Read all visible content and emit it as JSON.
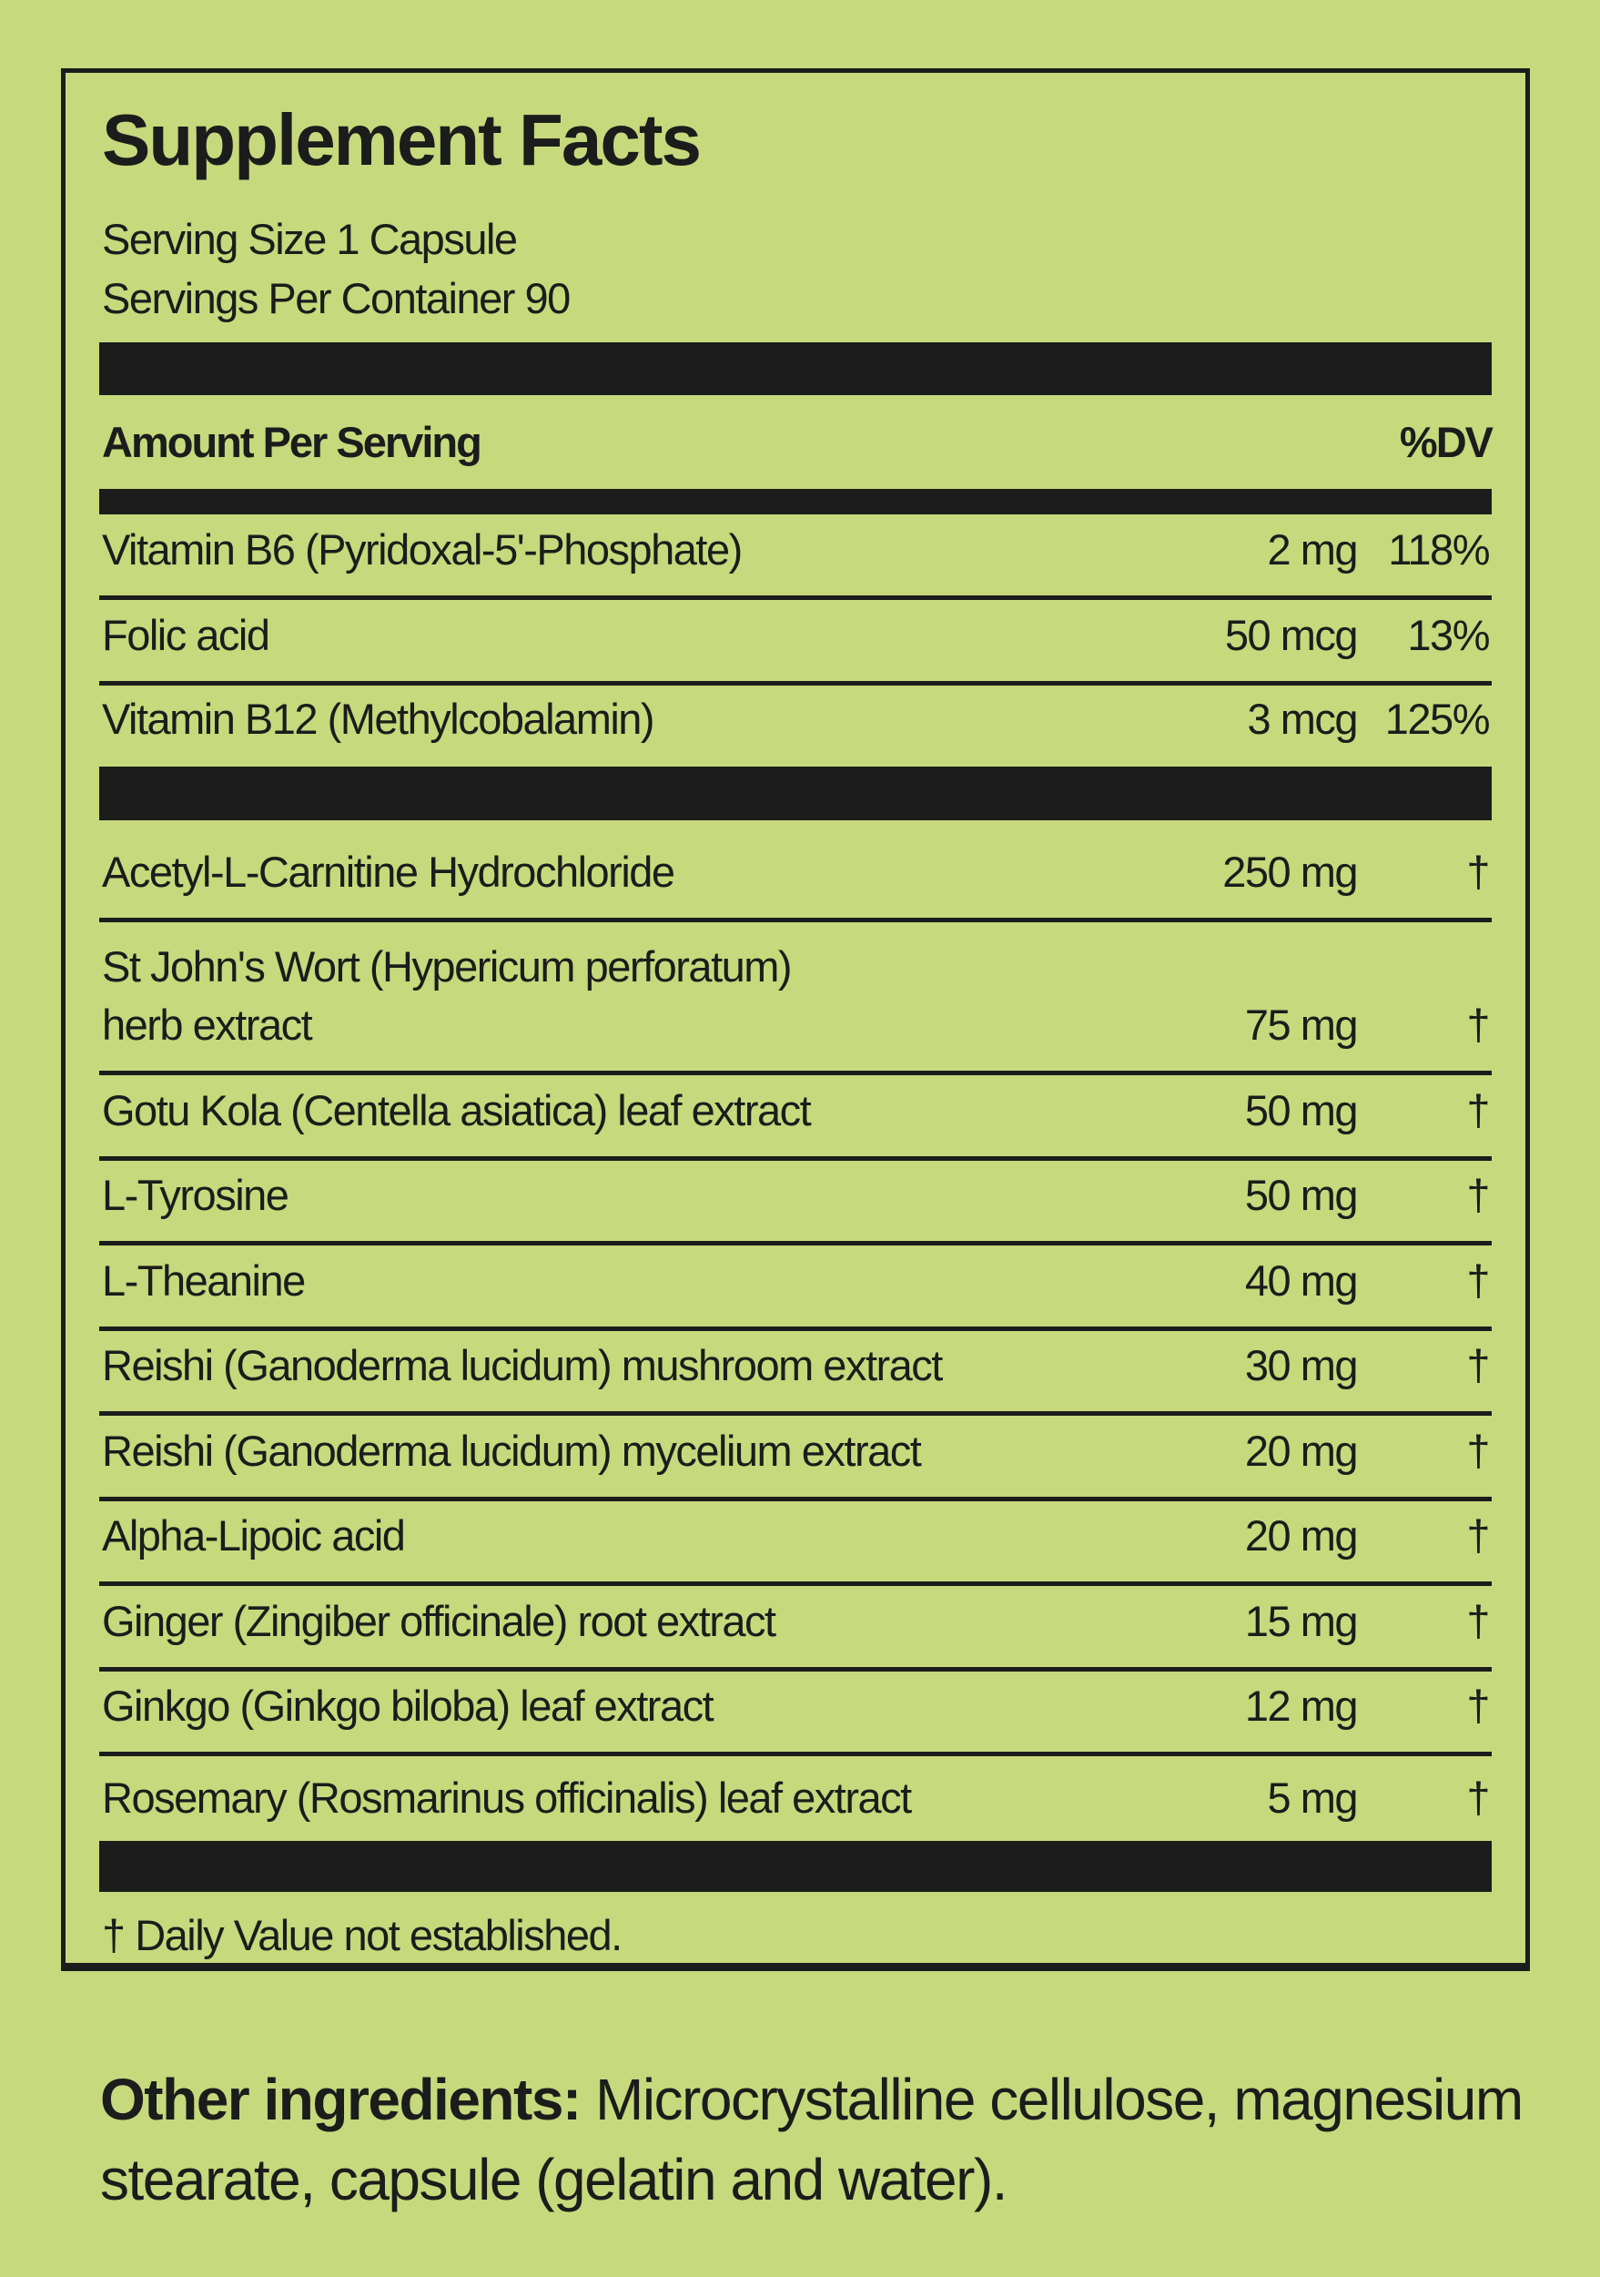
{
  "label": {
    "title": "Supplement Facts",
    "serving_size": "Serving Size 1 Capsule",
    "servings_per_container": "Servings Per Container 90",
    "header_amount": "Amount Per Serving",
    "header_dv": "%DV",
    "vitamins": [
      {
        "name": "Vitamin B6 (Pyridoxal-5'-Phosphate)",
        "amount": "2 mg",
        "dv": "118%"
      },
      {
        "name": "Folic acid",
        "amount": "50 mcg",
        "dv": "13%"
      },
      {
        "name": "Vitamin B12 (Methylcobalamin)",
        "amount": "3 mcg",
        "dv": "125%"
      }
    ],
    "ingredients": [
      {
        "name": "Acetyl-L-Carnitine Hydrochloride",
        "amount": "250 mg",
        "dv": "†"
      },
      {
        "name": "St John's Wort (Hypericum perforatum)\nherb extract",
        "amount": "75 mg",
        "dv": "†"
      },
      {
        "name": "Gotu Kola (Centella asiatica) leaf extract",
        "amount": "50 mg",
        "dv": "†"
      },
      {
        "name": "L-Tyrosine",
        "amount": "50 mg",
        "dv": "†"
      },
      {
        "name": "L-Theanine",
        "amount": "40 mg",
        "dv": "†"
      },
      {
        "name": "Reishi (Ganoderma lucidum) mushroom extract",
        "amount": "30 mg",
        "dv": "†"
      },
      {
        "name": "Reishi (Ganoderma lucidum) mycelium extract",
        "amount": "20 mg",
        "dv": "†"
      },
      {
        "name": "Alpha-Lipoic acid",
        "amount": "20 mg",
        "dv": "†"
      },
      {
        "name": "Ginger (Zingiber officinale) root extract",
        "amount": "15 mg",
        "dv": "†"
      },
      {
        "name": "Ginkgo (Ginkgo biloba) leaf extract",
        "amount": "12 mg",
        "dv": "†"
      },
      {
        "name": "Rosemary (Rosmarinus officinalis) leaf extract",
        "amount": "5 mg",
        "dv": "†"
      }
    ],
    "footnote": "† Daily Value not established."
  },
  "other_ingredients": {
    "label": "Other ingredients:",
    "text": " Microcrystalline cellulose, magnesium stearate, capsule (gelatin and water)."
  },
  "colors": {
    "background": "#c6d97c",
    "ink": "#1c1c1c"
  }
}
